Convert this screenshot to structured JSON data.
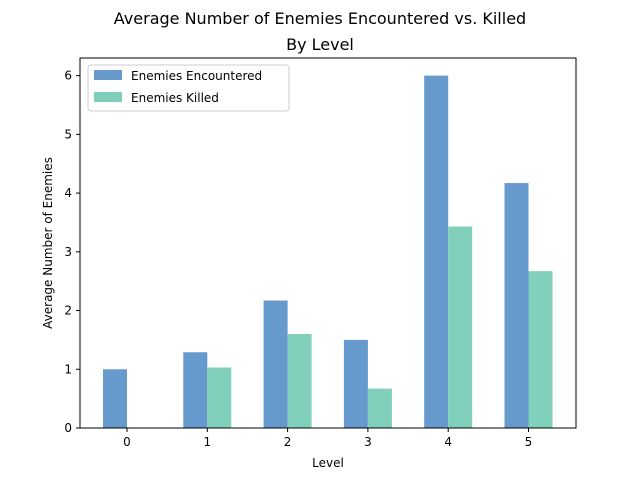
{
  "chart_data": {
    "type": "bar",
    "title": "Average Number of Enemies Encountered vs. Killed",
    "subtitle": "By Level",
    "xlabel": "Level",
    "ylabel": "Average Number of Enemies",
    "categories": [
      "0",
      "1",
      "2",
      "3",
      "4",
      "5"
    ],
    "ylim": [
      0,
      6.3
    ],
    "yticks": [
      0,
      1,
      2,
      3,
      4,
      5,
      6
    ],
    "grid": false,
    "legend_position": "top-left",
    "series": [
      {
        "name": "Enemies Encountered",
        "color": "#6699cc",
        "values": [
          1.0,
          1.29,
          2.17,
          1.5,
          6.0,
          4.17
        ]
      },
      {
        "name": "Enemies Killed",
        "color": "#80cfbb",
        "values": [
          0.0,
          1.03,
          1.6,
          0.67,
          3.43,
          2.67
        ]
      }
    ]
  }
}
